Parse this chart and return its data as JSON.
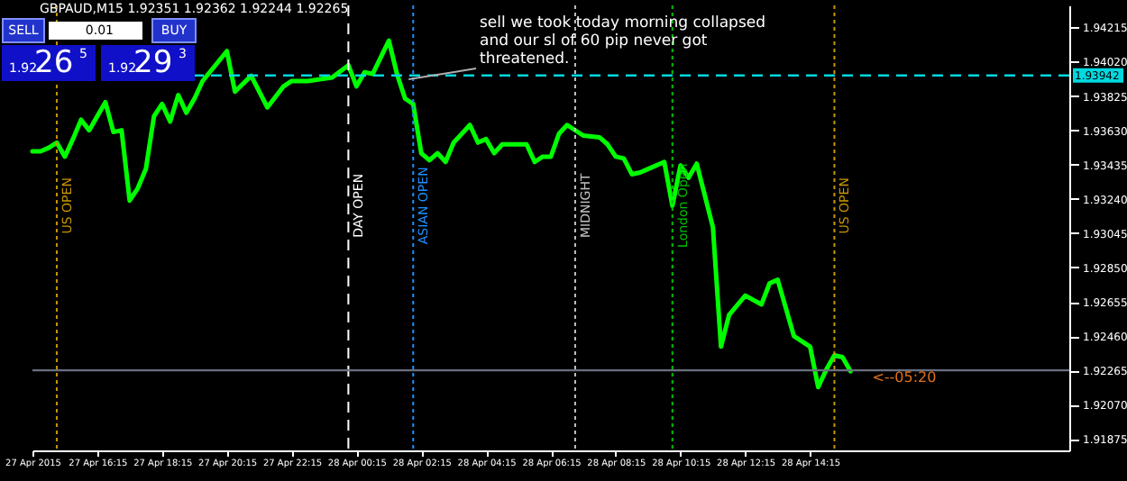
{
  "chart_data": {
    "type": "line",
    "title": "GBPAUD,M15  1.92351 1.92362 1.92244 1.92265",
    "annotations": [
      "sell we took today morning collapsed and our sl of 60 pip never got threatened.",
      "<--05:20",
      "SELL",
      "0.01",
      "BUY",
      "1.92",
      "26",
      "5",
      "1.92",
      "29",
      "3"
    ],
    "x": [
      "2015-04-27T14:15",
      "2015-04-27T14:30",
      "2015-04-27T14:45",
      "2015-04-27T15:00",
      "2015-04-27T15:15",
      "2015-04-27T15:30",
      "2015-04-27T15:45",
      "2015-04-27T16:00",
      "2015-04-27T16:15",
      "2015-04-27T16:30",
      "2015-04-27T16:45",
      "2015-04-27T17:00",
      "2015-04-27T17:15",
      "2015-04-27T17:30",
      "2015-04-27T17:45",
      "2015-04-27T18:00",
      "2015-04-27T18:15",
      "2015-04-27T18:30",
      "2015-04-27T18:45",
      "2015-04-27T19:00",
      "2015-04-27T19:15",
      "2015-04-27T19:30",
      "2015-04-27T20:15",
      "2015-04-27T20:30",
      "2015-04-27T21:00",
      "2015-04-27T21:30",
      "2015-04-27T22:00",
      "2015-04-27T22:15",
      "2015-04-27T22:45",
      "2015-04-27T23:30",
      "2015-04-28T00:00",
      "2015-04-28T00:15",
      "2015-04-28T00:30",
      "2015-04-28T00:45",
      "2015-04-28T01:15",
      "2015-04-28T01:30",
      "2015-04-28T01:45",
      "2015-04-28T02:00",
      "2015-04-28T02:15",
      "2015-04-28T02:30",
      "2015-04-28T02:45",
      "2015-04-28T03:00",
      "2015-04-28T03:15",
      "2015-04-28T03:45",
      "2015-04-28T04:00",
      "2015-04-28T04:15",
      "2015-04-28T04:30",
      "2015-04-28T04:45",
      "2015-04-28T05:30",
      "2015-04-28T05:45",
      "2015-04-28T06:00",
      "2015-04-28T06:15",
      "2015-04-28T06:30",
      "2015-04-28T06:45",
      "2015-04-28T07:15",
      "2015-04-28T07:45",
      "2015-04-28T08:00",
      "2015-04-28T08:15",
      "2015-04-28T08:30",
      "2015-04-28T08:45",
      "2015-04-28T09:00",
      "2015-04-28T09:15",
      "2015-04-28T09:45",
      "2015-04-28T10:00",
      "2015-04-28T10:15",
      "2015-04-28T10:30",
      "2015-04-28T10:45",
      "2015-04-28T11:15",
      "2015-04-28T11:30",
      "2015-04-28T11:45",
      "2015-04-28T12:15",
      "2015-04-28T12:45",
      "2015-04-28T13:00",
      "2015-04-28T13:15",
      "2015-04-28T13:45",
      "2015-04-28T14:15",
      "2015-04-28T14:30",
      "2015-04-28T14:45",
      "2015-04-28T15:00",
      "2015-04-28T15:15",
      "2015-04-28T15:30"
    ],
    "series": [
      {
        "color": "#00ff00",
        "values": [
          1.9351,
          1.9351,
          1.9353,
          1.9356,
          1.9348,
          1.9358,
          1.9369,
          1.9363,
          1.9371,
          1.9379,
          1.9362,
          1.9363,
          1.9323,
          1.933,
          1.9341,
          1.9371,
          1.9378,
          1.9368,
          1.9383,
          1.9373,
          1.9381,
          1.9391,
          1.9408,
          1.9385,
          1.9394,
          1.9376,
          1.9388,
          1.9391,
          1.9391,
          1.9393,
          1.94,
          1.9388,
          1.9396,
          1.9395,
          1.9414,
          1.9395,
          1.9381,
          1.9378,
          1.935,
          1.9346,
          1.935,
          1.9345,
          1.9356,
          1.9366,
          1.9356,
          1.9358,
          1.935,
          1.9355,
          1.9355,
          1.9345,
          1.9348,
          1.9348,
          1.9361,
          1.9366,
          1.936,
          1.9359,
          1.9355,
          1.9348,
          1.9347,
          1.9338,
          1.9339,
          1.9341,
          1.9345,
          1.932,
          1.9343,
          1.9336,
          1.9344,
          1.9308,
          1.924,
          1.9258,
          1.9269,
          1.9264,
          1.9276,
          1.9278,
          1.9246,
          1.924,
          1.9217,
          1.9227,
          1.9235,
          1.9234,
          1.9226
        ]
      }
    ],
    "xlim": [
      "2015-04-27T14:15",
      "2015-04-28T22:15"
    ],
    "xticks": [
      {
        "value": "2015-04-27T14:15",
        "label": "27 Apr 2015"
      },
      {
        "value": "2015-04-27T16:15",
        "label": "27 Apr 16:15"
      },
      {
        "value": "2015-04-27T18:15",
        "label": "27 Apr 18:15"
      },
      {
        "value": "2015-04-27T20:15",
        "label": "27 Apr 20:15"
      },
      {
        "value": "2015-04-27T22:15",
        "label": "27 Apr 22:15"
      },
      {
        "value": "2015-04-28T00:15",
        "label": "28 Apr 00:15"
      },
      {
        "value": "2015-04-28T02:15",
        "label": "28 Apr 02:15"
      },
      {
        "value": "2015-04-28T04:15",
        "label": "28 Apr 04:15"
      },
      {
        "value": "2015-04-28T06:15",
        "label": "28 Apr 06:15"
      },
      {
        "value": "2015-04-28T08:15",
        "label": "28 Apr 08:15"
      },
      {
        "value": "2015-04-28T10:15",
        "label": "28 Apr 10:15"
      },
      {
        "value": "2015-04-28T12:15",
        "label": "28 Apr 12:15"
      },
      {
        "value": "2015-04-28T14:15",
        "label": "28 Apr 14:15"
      }
    ],
    "ylim": [
      1.9181,
      1.9434
    ],
    "yticks": [
      {
        "value": 1.94215,
        "label": "1.94215"
      },
      {
        "value": 1.9402,
        "label": "1.94020"
      },
      {
        "value": 1.93825,
        "label": "1.93825"
      },
      {
        "value": 1.9363,
        "label": "1.93630"
      },
      {
        "value": 1.93435,
        "label": "1.93435"
      },
      {
        "value": 1.9324,
        "label": "1.93240"
      },
      {
        "value": 1.93045,
        "label": "1.93045"
      },
      {
        "value": 1.9285,
        "label": "1.92850"
      },
      {
        "value": 1.92655,
        "label": "1.92655"
      },
      {
        "value": 1.9246,
        "label": "1.92460"
      },
      {
        "value": 1.92265,
        "label": "1.92265"
      },
      {
        "value": 1.9207,
        "label": "1.92070"
      },
      {
        "value": 1.91875,
        "label": "1.91875"
      }
    ],
    "ref_lines": [
      {
        "axis": "x",
        "value": "2015-04-27T15:00",
        "label": "US OPEN",
        "color": "#c89600",
        "line_style": "dotted"
      },
      {
        "axis": "x",
        "value": "2015-04-28T00:00",
        "label": "DAY OPEN",
        "color": "#ffffff",
        "line_style": "dashed"
      },
      {
        "axis": "x",
        "value": "2015-04-28T02:00",
        "label": "ASIAN OPEN",
        "color": "#1e90ff",
        "line_style": "dotted"
      },
      {
        "axis": "x",
        "value": "2015-04-28T07:00",
        "label": "MIDNIGHT",
        "color": "#c0c0c0",
        "line_style": "dotted"
      },
      {
        "axis": "x",
        "value": "2015-04-28T10:00",
        "label": "London Open",
        "color": "#00c000",
        "line_style": "dotted"
      },
      {
        "axis": "x",
        "value": "2015-04-28T15:00",
        "label": "US OPEN",
        "color": "#c89600",
        "line_style": "dotted"
      },
      {
        "axis": "y",
        "value": 1.93942,
        "label": "1.93942",
        "color": "#00d8e0",
        "line_style": "dashed"
      },
      {
        "axis": "y",
        "value": 1.92265,
        "label": null,
        "color": "#6a7080",
        "line_style": "solid"
      }
    ],
    "grid": false,
    "marker": "none",
    "line_style": "solid"
  }
}
